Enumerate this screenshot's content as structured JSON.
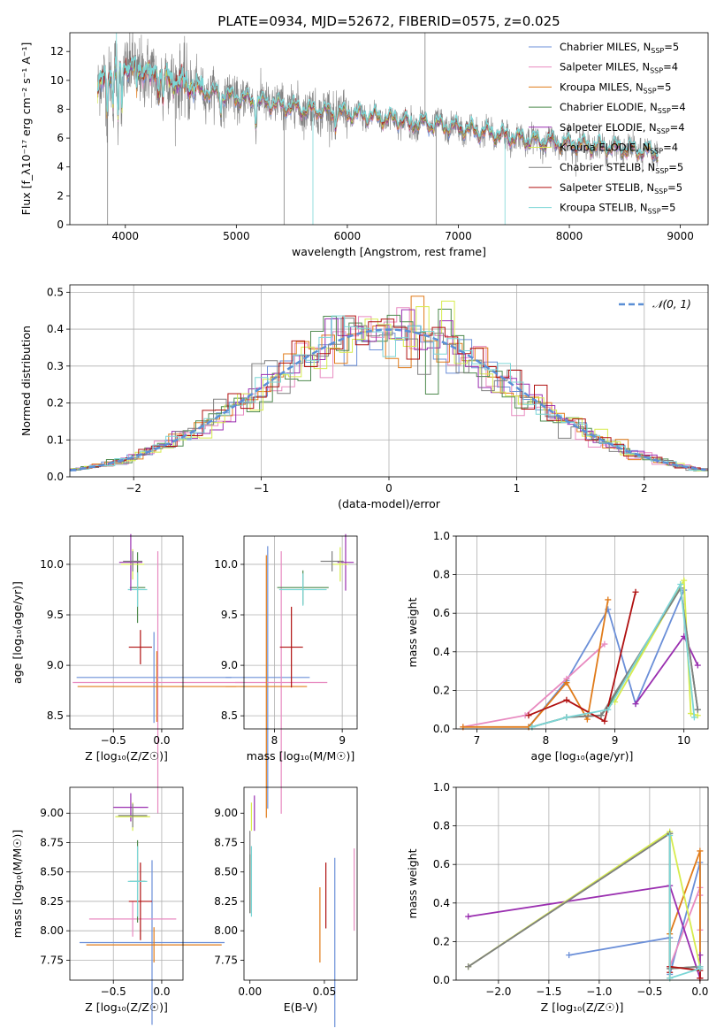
{
  "figure": {
    "title": "PLATE=0934, MJD=52672, FIBERID=0575, z=0.025",
    "colors": {
      "chabrier_miles": "#6b8fd8",
      "salpeter_miles": "#e88ac0",
      "kroupa_miles": "#e07b1a",
      "chabrier_elodie": "#4e8a4e",
      "salpeter_elodie": "#9a2fb0",
      "kroupa_elodie": "#d7ec4e",
      "chabrier_stelib": "#808080",
      "salpeter_stelib": "#b01010",
      "kroupa_stelib": "#7cd6d6",
      "normal": "#5b8fd6"
    }
  },
  "chart_data": [
    {
      "id": "spectrum",
      "type": "line",
      "xlabel": "wavelength [Angstrom, rest frame]",
      "ylabel": "Flux [f_λ10⁻¹⁷ erg cm⁻² s⁻¹ A⁻¹]",
      "xlim": [
        3500,
        9250
      ],
      "ylim": [
        0,
        13.3
      ],
      "xticks": [
        4000,
        5000,
        6000,
        7000,
        8000,
        9000
      ],
      "yticks": [
        0,
        2,
        4,
        6,
        8,
        10,
        12
      ],
      "legend_position": "top-right",
      "series": [
        {
          "name": "Chabrier MILES, N_SSP=5",
          "label_main": "Chabrier MILES, N",
          "label_sub": "SSP",
          "label_tail": "=5",
          "color": "#6b8fd8"
        },
        {
          "name": "Salpeter MILES, N_SSP=4",
          "label_main": "Salpeter MILES, N",
          "label_sub": "SSP",
          "label_tail": "=4",
          "color": "#e88ac0"
        },
        {
          "name": "Kroupa MILES, N_SSP=5",
          "label_main": "Kroupa MILES, N",
          "label_sub": "SSP",
          "label_tail": "=5",
          "color": "#e07b1a"
        },
        {
          "name": "Chabrier ELODIE, N_SSP=4",
          "label_main": "Chabrier ELODIE, N",
          "label_sub": "SSP",
          "label_tail": "=4",
          "color": "#4e8a4e"
        },
        {
          "name": "Salpeter ELODIE, N_SSP=4",
          "label_main": "Salpeter ELODIE, N",
          "label_sub": "SSP",
          "label_tail": "=4",
          "color": "#9a2fb0"
        },
        {
          "name": "Kroupa ELODIE, N_SSP=4",
          "label_main": "Kroupa ELODIE, N",
          "label_sub": "SSP",
          "label_tail": "=4",
          "color": "#d7ec4e"
        },
        {
          "name": "Chabrier STELIB, N_SSP=5",
          "label_main": "Chabrier STELIB, N",
          "label_sub": "SSP",
          "label_tail": "=5",
          "color": "#808080"
        },
        {
          "name": "Salpeter STELIB, N_SSP=5",
          "label_main": "Salpeter STELIB, N",
          "label_sub": "SSP",
          "label_tail": "=5",
          "color": "#b01010"
        },
        {
          "name": "Kroupa STELIB, N_SSP=5",
          "label_main": "Kroupa STELIB, N",
          "label_sub": "SSP",
          "label_tail": "=5",
          "color": "#7cd6d6"
        }
      ],
      "continuum": {
        "x": [
          3750,
          3900,
          4000,
          4200,
          4500,
          4800,
          5000,
          5300,
          5600,
          6000,
          6500,
          7000,
          7300,
          7600,
          8000,
          8400,
          8800
        ],
        "y": [
          9.5,
          10.6,
          11.0,
          10.6,
          9.8,
          9.1,
          8.8,
          8.4,
          8.0,
          7.7,
          7.2,
          6.7,
          6.3,
          5.9,
          5.6,
          5.3,
          5.0
        ]
      }
    },
    {
      "id": "residuals",
      "type": "histogram",
      "xlabel": "(data-model)/error",
      "ylabel": "Normed distribution",
      "xlim": [
        -2.5,
        2.5
      ],
      "ylim": [
        0,
        0.52
      ],
      "xticks": [
        -2,
        -1,
        0,
        1,
        2
      ],
      "yticks": [
        0.0,
        0.1,
        0.2,
        0.3,
        0.4,
        0.5
      ],
      "grid": true,
      "bin_width": 0.1,
      "legend": "𝒩(0, 1)",
      "legend_position": "top-right",
      "normal": {
        "mean": 0,
        "sigma": 1
      }
    },
    {
      "id": "age_vs_Z",
      "type": "errorbar",
      "xlabel": "Z [log₁₀(Z/Z☉)]",
      "ylabel": "age  [log₁₀(age/yr)]",
      "xlim": [
        -0.95,
        0.22
      ],
      "ylim": [
        8.37,
        10.28
      ],
      "xticks": [
        -0.5,
        0.0
      ],
      "yticks": [
        8.5,
        9.0,
        9.5,
        10.0
      ],
      "grid": true,
      "points": [
        {
          "color": "#6b8fd8",
          "x": -0.08,
          "xerr": 0.8,
          "y": 8.88,
          "yerr": 0.45
        },
        {
          "color": "#e88ac0",
          "x": -0.04,
          "xerr": 0.88,
          "y": 8.83,
          "yerr": 1.3
        },
        {
          "color": "#e07b1a",
          "x": -0.05,
          "xerr": 0.82,
          "y": 8.79,
          "yerr": 0.35
        },
        {
          "color": "#b01010",
          "x": -0.22,
          "xerr": 0.12,
          "y": 9.18,
          "yerr": 0.17
        },
        {
          "color": "#4e8a4e",
          "x": -0.25,
          "xerr": 0.08,
          "y": 9.77,
          "yerr": 0.35
        },
        {
          "color": "#7cd6d6",
          "x": -0.25,
          "xerr": 0.1,
          "y": 9.75,
          "yerr": 0.17
        },
        {
          "color": "#9a2fb0",
          "x": -0.32,
          "xerr": 0.12,
          "y": 10.02,
          "yerr": 0.28
        },
        {
          "color": "#d7ec4e",
          "x": -0.3,
          "xerr": 0.12,
          "y": 10.0,
          "yerr": 0.15
        },
        {
          "color": "#808080",
          "x": -0.3,
          "xerr": 0.1,
          "y": 10.03,
          "yerr": 0.1
        }
      ]
    },
    {
      "id": "age_vs_mass",
      "type": "errorbar",
      "xlabel": "mass [log₁₀(M/M☉)]",
      "ylabel": "",
      "xlim": [
        7.55,
        9.22
      ],
      "ylim": [
        8.37,
        10.28
      ],
      "xticks": [
        8,
        9
      ],
      "yticks": [
        8.5,
        9.0,
        9.5,
        10.0
      ],
      "grid": true,
      "points": [
        {
          "color": "#6b8fd8",
          "x": 7.9,
          "xerr": 0.62,
          "y": 8.88,
          "yerr": 1.3
        },
        {
          "color": "#e88ac0",
          "x": 8.1,
          "xerr": 0.68,
          "y": 8.83,
          "yerr": 1.3
        },
        {
          "color": "#e07b1a",
          "x": 7.88,
          "xerr": 0.6,
          "y": 8.79,
          "yerr": 1.3
        },
        {
          "color": "#b01010",
          "x": 8.25,
          "xerr": 0.17,
          "y": 9.18,
          "yerr": 0.4
        },
        {
          "color": "#4e8a4e",
          "x": 8.42,
          "xerr": 0.38,
          "y": 9.77,
          "yerr": 0.17
        },
        {
          "color": "#7cd6d6",
          "x": 8.42,
          "xerr": 0.35,
          "y": 9.75,
          "yerr": 0.16
        },
        {
          "color": "#9a2fb0",
          "x": 9.05,
          "xerr": 0.12,
          "y": 10.02,
          "yerr": 0.28
        },
        {
          "color": "#d7ec4e",
          "x": 8.97,
          "xerr": 0.12,
          "y": 10.0,
          "yerr": 0.17
        },
        {
          "color": "#808080",
          "x": 8.85,
          "xerr": 0.17,
          "y": 10.03,
          "yerr": 0.1
        }
      ]
    },
    {
      "id": "weight_vs_age",
      "type": "line",
      "xlabel": "age  [log₁₀(age/yr)]",
      "ylabel": "mass weight",
      "xlim": [
        6.7,
        10.35
      ],
      "ylim": [
        0,
        1.0
      ],
      "xticks": [
        7,
        8,
        9,
        10
      ],
      "yticks": [
        0.0,
        0.2,
        0.4,
        0.6,
        0.8,
        1.0
      ],
      "grid": true,
      "series": [
        {
          "name": "Chabrier MILES",
          "color": "#6b8fd8",
          "x": [
            7.75,
            8.3,
            8.9,
            9.3,
            10.0
          ],
          "y": [
            0.01,
            0.25,
            0.62,
            0.13,
            0.72
          ]
        },
        {
          "name": "Salpeter MILES",
          "color": "#e88ac0",
          "x": [
            6.8,
            7.7,
            8.3,
            8.85
          ],
          "y": [
            0.01,
            0.07,
            0.26,
            0.44
          ]
        },
        {
          "name": "Kroupa MILES",
          "color": "#e07b1a",
          "x": [
            6.8,
            7.75,
            8.3,
            8.6,
            8.9
          ],
          "y": [
            0.01,
            0.01,
            0.24,
            0.05,
            0.67
          ]
        },
        {
          "name": "Chabrier ELODIE",
          "color": "#4e8a4e",
          "x": [
            7.8,
            8.3,
            8.8,
            8.95,
            9.95,
            10.2
          ],
          "y": [
            0.01,
            0.06,
            0.07,
            0.14,
            0.73,
            0.1
          ]
        },
        {
          "name": "Salpeter ELODIE",
          "color": "#9a2fb0",
          "x": [
            9.3,
            10.0,
            10.2
          ],
          "y": [
            0.13,
            0.48,
            0.33
          ]
        },
        {
          "name": "Kroupa ELODIE",
          "color": "#d7ec4e",
          "x": [
            9.0,
            10.0,
            10.1,
            10.2
          ],
          "y": [
            0.14,
            0.77,
            0.08,
            0.07
          ]
        },
        {
          "name": "Chabrier STELIB",
          "color": "#808080",
          "x": [
            7.8,
            8.3,
            8.8,
            9.95,
            10.2
          ],
          "y": [
            0.01,
            0.06,
            0.07,
            0.73,
            0.1
          ]
        },
        {
          "name": "Salpeter STELIB",
          "color": "#b01010",
          "x": [
            7.75,
            8.3,
            8.85,
            9.3
          ],
          "y": [
            0.07,
            0.15,
            0.04,
            0.71
          ]
        },
        {
          "name": "Kroupa STELIB",
          "color": "#7cd6d6",
          "x": [
            7.8,
            8.3,
            8.9,
            9.95,
            10.15
          ],
          "y": [
            0.01,
            0.06,
            0.1,
            0.75,
            0.06
          ]
        }
      ]
    },
    {
      "id": "mass_vs_Z",
      "type": "errorbar",
      "xlabel": "Z [log₁₀(Z/Z☉)]",
      "ylabel": "mass [log₁₀(M/M☉)]",
      "xlim": [
        -0.95,
        0.22
      ],
      "ylim": [
        7.58,
        9.22
      ],
      "xticks": [
        -0.5,
        0.0
      ],
      "yticks": [
        7.75,
        8.0,
        8.25,
        8.5,
        8.75,
        9.0
      ],
      "grid": true,
      "points": [
        {
          "color": "#6b8fd8",
          "x": -0.1,
          "xerr": 0.75,
          "y": 7.9,
          "yerr": 0.7
        },
        {
          "color": "#e88ac0",
          "x": -0.3,
          "xerr": 0.45,
          "y": 8.1,
          "yerr": 0.15
        },
        {
          "color": "#e07b1a",
          "x": -0.08,
          "xerr": 0.7,
          "y": 7.88,
          "yerr": 0.15
        },
        {
          "color": "#b01010",
          "x": -0.22,
          "xerr": 0.12,
          "y": 8.25,
          "yerr": 0.33
        },
        {
          "color": "#4e8a4e",
          "x": -0.25,
          "xerr": 0.08,
          "y": 8.42,
          "yerr": 0.35
        },
        {
          "color": "#7cd6d6",
          "x": -0.25,
          "xerr": 0.1,
          "y": 8.42,
          "yerr": 0.3
        },
        {
          "color": "#9a2fb0",
          "x": -0.32,
          "xerr": 0.18,
          "y": 9.05,
          "yerr": 0.12
        },
        {
          "color": "#d7ec4e",
          "x": -0.3,
          "xerr": 0.18,
          "y": 8.97,
          "yerr": 0.12
        },
        {
          "color": "#808080",
          "x": -0.3,
          "xerr": 0.15,
          "y": 8.98,
          "yerr": 0.1
        }
      ]
    },
    {
      "id": "mass_vs_ebv",
      "type": "errorbar",
      "xlabel": "E(B-V)",
      "ylabel": "",
      "xlim": [
        -0.004,
        0.072
      ],
      "ylim": [
        7.58,
        9.22
      ],
      "xticks": [
        0.0,
        0.05
      ],
      "yticks": [
        7.75,
        8.0,
        8.25,
        8.5,
        8.75,
        9.0
      ],
      "grid": false,
      "points": [
        {
          "color": "#6b8fd8",
          "x": 0.057,
          "xerr": 0,
          "y": 7.9,
          "yerr": 0.72
        },
        {
          "color": "#e88ac0",
          "x": 0.07,
          "xerr": 0,
          "y": 8.35,
          "yerr": 0.35
        },
        {
          "color": "#e07b1a",
          "x": 0.047,
          "xerr": 0,
          "y": 8.05,
          "yerr": 0.32
        },
        {
          "color": "#b01010",
          "x": 0.051,
          "xerr": 0,
          "y": 8.3,
          "yerr": 0.28
        },
        {
          "color": "#4e8a4e",
          "x": 0.0,
          "xerr": 0,
          "y": 8.4,
          "yerr": 0.25
        },
        {
          "color": "#7cd6d6",
          "x": 0.001,
          "xerr": 0,
          "y": 8.42,
          "yerr": 0.3
        },
        {
          "color": "#9a2fb0",
          "x": 0.003,
          "xerr": 0,
          "y": 9.0,
          "yerr": 0.15
        },
        {
          "color": "#d7ec4e",
          "x": 0.001,
          "xerr": 0,
          "y": 8.97,
          "yerr": 0.12
        },
        {
          "color": "#808080",
          "x": 0.0,
          "xerr": 0,
          "y": 8.5,
          "yerr": 0.35
        }
      ]
    },
    {
      "id": "weight_vs_Z",
      "type": "line",
      "xlabel": "Z [log₁₀(Z/Z☉)]",
      "ylabel": "mass weight",
      "xlim": [
        -2.42,
        0.08
      ],
      "ylim": [
        0,
        1.0
      ],
      "xticks": [
        -2.0,
        -1.5,
        -1.0,
        -0.5,
        0.0
      ],
      "yticks": [
        0.0,
        0.2,
        0.4,
        0.6,
        0.8,
        1.0
      ],
      "grid": true,
      "series": [
        {
          "name": "Chabrier MILES",
          "color": "#6b8fd8",
          "x": [
            -1.3,
            -0.3,
            -0.3,
            0.0,
            0.0
          ],
          "y": [
            0.13,
            0.22,
            0.03,
            0.61,
            0.01
          ]
        },
        {
          "name": "Salpeter MILES",
          "color": "#e88ac0",
          "x": [
            -0.3,
            0.0,
            0.0,
            0.0
          ],
          "y": [
            0.07,
            0.48,
            0.26,
            0.44
          ]
        },
        {
          "name": "Kroupa MILES",
          "color": "#e07b1a",
          "x": [
            -0.3,
            -0.3,
            0.0,
            0.0
          ],
          "y": [
            0.01,
            0.24,
            0.67,
            0.01
          ]
        },
        {
          "name": "Chabrier ELODIE",
          "color": "#4e8a4e",
          "x": [
            -2.3,
            -0.3,
            -0.3,
            0.0
          ],
          "y": [
            0.07,
            0.76,
            0.06,
            0.07
          ]
        },
        {
          "name": "Salpeter ELODIE",
          "color": "#9a2fb0",
          "x": [
            -2.3,
            -0.3,
            0.0,
            0.0
          ],
          "y": [
            0.33,
            0.49,
            0.01,
            0.13
          ]
        },
        {
          "name": "Kroupa ELODIE",
          "color": "#d7ec4e",
          "x": [
            -2.3,
            -0.3,
            0.0
          ],
          "y": [
            0.07,
            0.77,
            0.07
          ]
        },
        {
          "name": "Chabrier STELIB",
          "color": "#808080",
          "x": [
            -2.3,
            -0.3,
            -0.3,
            0.0
          ],
          "y": [
            0.07,
            0.76,
            0.06,
            0.07
          ]
        },
        {
          "name": "Salpeter STELIB",
          "color": "#b01010",
          "x": [
            -0.3,
            -0.3,
            0.0,
            0.0
          ],
          "y": [
            0.04,
            0.07,
            0.05,
            0.01
          ]
        },
        {
          "name": "Kroupa STELIB",
          "color": "#7cd6d6",
          "x": [
            -0.3,
            -0.3,
            0.0,
            0.0
          ],
          "y": [
            0.75,
            0.01,
            0.06,
            0.07
          ]
        }
      ]
    }
  ]
}
